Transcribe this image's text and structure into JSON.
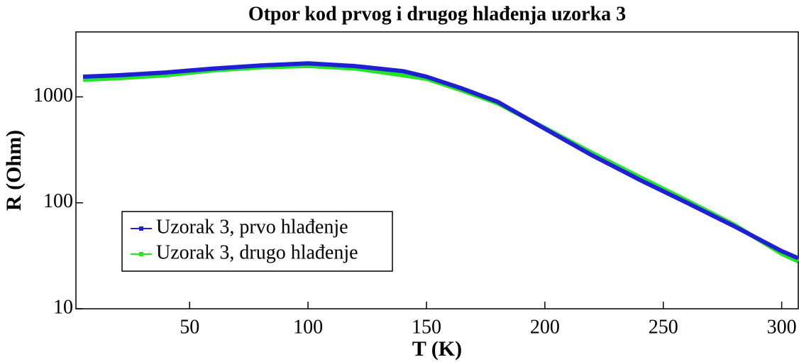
{
  "chart_data": {
    "type": "line",
    "title": "Otpor kod prvog i drugog hlađenja uzorka 3",
    "x_label": "T (K)",
    "y_label": "R (Ohm)",
    "x": [
      5,
      20,
      40,
      60,
      80,
      100,
      120,
      140,
      150,
      165,
      180,
      200,
      220,
      240,
      260,
      280,
      300,
      307
    ],
    "series": [
      {
        "name": "Uzorak 3, prvo hlađenje",
        "color": "#1f1fd6",
        "values": [
          1550,
          1600,
          1700,
          1850,
          1980,
          2070,
          1950,
          1750,
          1550,
          1200,
          900,
          500,
          280,
          165,
          100,
          60,
          35,
          30
        ]
      },
      {
        "name": "Uzorak 3, drugo hlađenje",
        "color": "#22e622",
        "values": [
          1450,
          1500,
          1600,
          1780,
          1900,
          1960,
          1850,
          1600,
          1480,
          1150,
          870,
          510,
          295,
          175,
          105,
          62,
          33,
          28
        ]
      }
    ],
    "xlim": [
      2,
      307
    ],
    "ylim": [
      10,
      4100
    ],
    "log_y": true,
    "xticks": [
      50,
      100,
      150,
      200,
      250,
      300
    ],
    "yticks": [
      10,
      100,
      1000
    ],
    "grid": false,
    "legend": "lower left"
  }
}
